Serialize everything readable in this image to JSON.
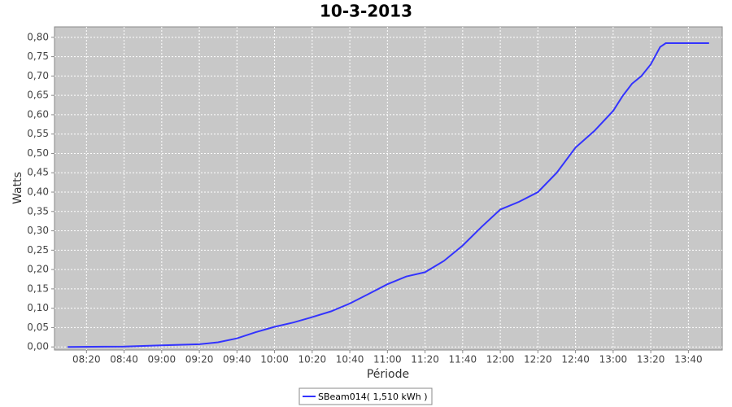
{
  "chart_data": {
    "type": "line",
    "title": "10-3-2013",
    "x_label": "Période",
    "y_label": "Watts",
    "x": [
      "08:10",
      "08:40",
      "09:00",
      "09:20",
      "09:30",
      "09:40",
      "09:50",
      "10:00",
      "10:10",
      "10:20",
      "10:30",
      "10:40",
      "10:50",
      "11:00",
      "11:10",
      "11:20",
      "11:30",
      "11:40",
      "11:50",
      "12:00",
      "12:10",
      "12:20",
      "12:30",
      "12:40",
      "12:50",
      "13:00",
      "13:05",
      "13:10",
      "13:15",
      "13:20",
      "13:25",
      "13:28",
      "13:51"
    ],
    "series": [
      {
        "name": "SBeam014( 1,510 kWh )",
        "color": "#3333ff",
        "values": [
          0,
          0.001,
          0.004,
          0.007,
          0.012,
          0.022,
          0.038,
          0.052,
          0.063,
          0.077,
          0.092,
          0.112,
          0.137,
          0.162,
          0.182,
          0.193,
          0.222,
          0.262,
          0.31,
          0.355,
          0.375,
          0.4,
          0.45,
          0.515,
          0.558,
          0.61,
          0.648,
          0.68,
          0.7,
          0.73,
          0.775,
          0.785,
          0.785
        ]
      }
    ],
    "xlim": [
      "08:03",
      "13:58"
    ],
    "xticks": [
      "08:20",
      "08:40",
      "09:00",
      "09:20",
      "09:40",
      "10:00",
      "10:20",
      "10:40",
      "11:00",
      "11:20",
      "11:40",
      "12:00",
      "12:20",
      "12:40",
      "13:00",
      "13:20",
      "13:40"
    ],
    "ylim": [
      -0.008,
      0.827
    ],
    "yticks": [
      {
        "value": 0,
        "label": "0,00"
      },
      {
        "value": 0.05,
        "label": "0,05"
      },
      {
        "value": 0.1,
        "label": "0,10"
      },
      {
        "value": 0.15,
        "label": "0,15"
      },
      {
        "value": 0.2,
        "label": "0,20"
      },
      {
        "value": 0.25,
        "label": "0,25"
      },
      {
        "value": 0.3,
        "label": "0,30"
      },
      {
        "value": 0.35,
        "label": "0,35"
      },
      {
        "value": 0.4,
        "label": "0,40"
      },
      {
        "value": 0.45,
        "label": "0,45"
      },
      {
        "value": 0.5,
        "label": "0,50"
      },
      {
        "value": 0.55,
        "label": "0,55"
      },
      {
        "value": 0.6,
        "label": "0,60"
      },
      {
        "value": 0.65,
        "label": "0,65"
      },
      {
        "value": 0.7,
        "label": "0,70"
      },
      {
        "value": 0.75,
        "label": "0,75"
      },
      {
        "value": 0.8,
        "label": "0,80"
      }
    ],
    "grid": true,
    "legend": "bottom"
  }
}
